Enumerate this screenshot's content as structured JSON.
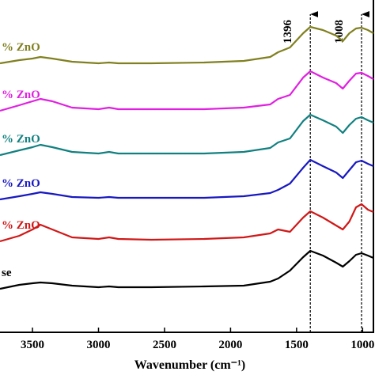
{
  "chart_data": {
    "type": "line",
    "xlabel": "Wavenumber (cm⁻¹)",
    "x": [
      3746,
      3600,
      3500,
      3440,
      3350,
      3200,
      3000,
      2920,
      2850,
      2600,
      2200,
      1900,
      1700,
      1640,
      1550,
      1450,
      1396,
      1300,
      1200,
      1150,
      1100,
      1050,
      1008,
      960,
      918
    ],
    "xlim": [
      3746,
      918
    ],
    "xticks": [
      3500,
      3000,
      2500,
      2000,
      1500,
      1000
    ],
    "ylim": [
      420,
      0
    ],
    "annotations": [
      1396,
      1008
    ],
    "series": [
      {
        "name": "se",
        "color": "#000000",
        "values": [
          365,
          360,
          358,
          357,
          358,
          361,
          363,
          362,
          363,
          363,
          362,
          361,
          356,
          352,
          342,
          325,
          317,
          323,
          332,
          337,
          330,
          322,
          320,
          323,
          326
        ]
      },
      {
        "name": "% ZnO",
        "color": "#d01818",
        "values": [
          305,
          298,
          290,
          284,
          290,
          300,
          302,
          300,
          302,
          303,
          302,
          300,
          295,
          290,
          293,
          275,
          267,
          275,
          285,
          290,
          280,
          262,
          258,
          265,
          268
        ]
      },
      {
        "name": "% ZnO",
        "color": "#1818c0",
        "values": [
          252,
          248,
          245,
          243,
          245,
          249,
          250,
          249,
          250,
          250,
          250,
          248,
          244,
          240,
          232,
          212,
          202,
          210,
          218,
          225,
          215,
          205,
          203,
          207,
          210
        ]
      },
      {
        "name": "% ZnO",
        "color": "#128080",
        "values": [
          196,
          190,
          186,
          183,
          186,
          192,
          194,
          192,
          194,
          194,
          194,
          192,
          187,
          180,
          175,
          153,
          145,
          152,
          160,
          168,
          158,
          150,
          148,
          152,
          155
        ]
      },
      {
        "name": "% ZnO",
        "color": "#e020e0",
        "values": [
          140,
          133,
          128,
          125,
          128,
          136,
          138,
          136,
          138,
          138,
          138,
          136,
          132,
          125,
          120,
          98,
          90,
          98,
          105,
          112,
          102,
          93,
          92,
          96,
          100
        ]
      },
      {
        "name": "% ZnO",
        "color": "#808020",
        "values": [
          80,
          76,
          74,
          72,
          74,
          78,
          80,
          79,
          80,
          80,
          79,
          77,
          72,
          66,
          60,
          42,
          34,
          38,
          45,
          52,
          42,
          36,
          35,
          38,
          42
        ]
      }
    ]
  }
}
